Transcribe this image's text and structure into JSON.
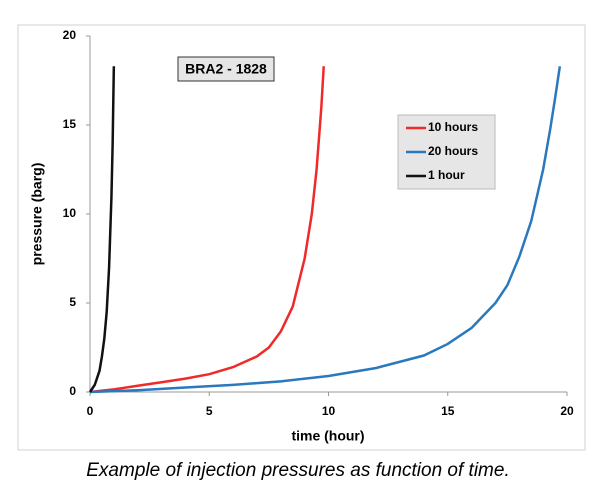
{
  "chart_data": {
    "type": "line",
    "annotation": "BRA2 - 1828",
    "x_label": "time (hour)",
    "y_label": "pressure (barg)",
    "caption": "Example of injection pressures as function of time.",
    "xlim": [
      0,
      20
    ],
    "xticks": [
      0,
      5,
      10,
      15,
      20
    ],
    "ylim": [
      0,
      20
    ],
    "yticks": [
      0,
      5,
      10,
      15,
      20
    ],
    "grid": false,
    "legend": "right",
    "series": [
      {
        "name": "10 hours",
        "color": "#ee2a2a",
        "x": [
          0,
          1,
          2,
          3,
          4,
          5,
          6,
          7,
          7.5,
          8,
          8.5,
          9,
          9.3,
          9.5,
          9.7,
          9.8
        ],
        "values": [
          0,
          0.15,
          0.35,
          0.55,
          0.75,
          1.0,
          1.4,
          2.0,
          2.5,
          3.4,
          4.8,
          7.5,
          10,
          12.5,
          16,
          18.3
        ]
      },
      {
        "name": "20 hours",
        "color": "#2a78bd",
        "x": [
          0,
          2,
          4,
          6,
          8,
          10,
          12,
          14,
          15,
          16,
          17,
          17.5,
          18,
          18.5,
          19,
          19.3,
          19.5,
          19.7
        ],
        "values": [
          0,
          0.1,
          0.25,
          0.4,
          0.6,
          0.9,
          1.35,
          2.05,
          2.7,
          3.6,
          5,
          6,
          7.6,
          9.6,
          12.5,
          14.8,
          16.5,
          18.3
        ]
      },
      {
        "name": "1 hour",
        "color": "#111111",
        "x": [
          0,
          0.2,
          0.4,
          0.5,
          0.6,
          0.7,
          0.8,
          0.9,
          0.95,
          1.0
        ],
        "values": [
          0,
          0.4,
          1.2,
          2,
          3,
          4.5,
          7,
          11,
          14,
          18.3
        ]
      }
    ]
  }
}
